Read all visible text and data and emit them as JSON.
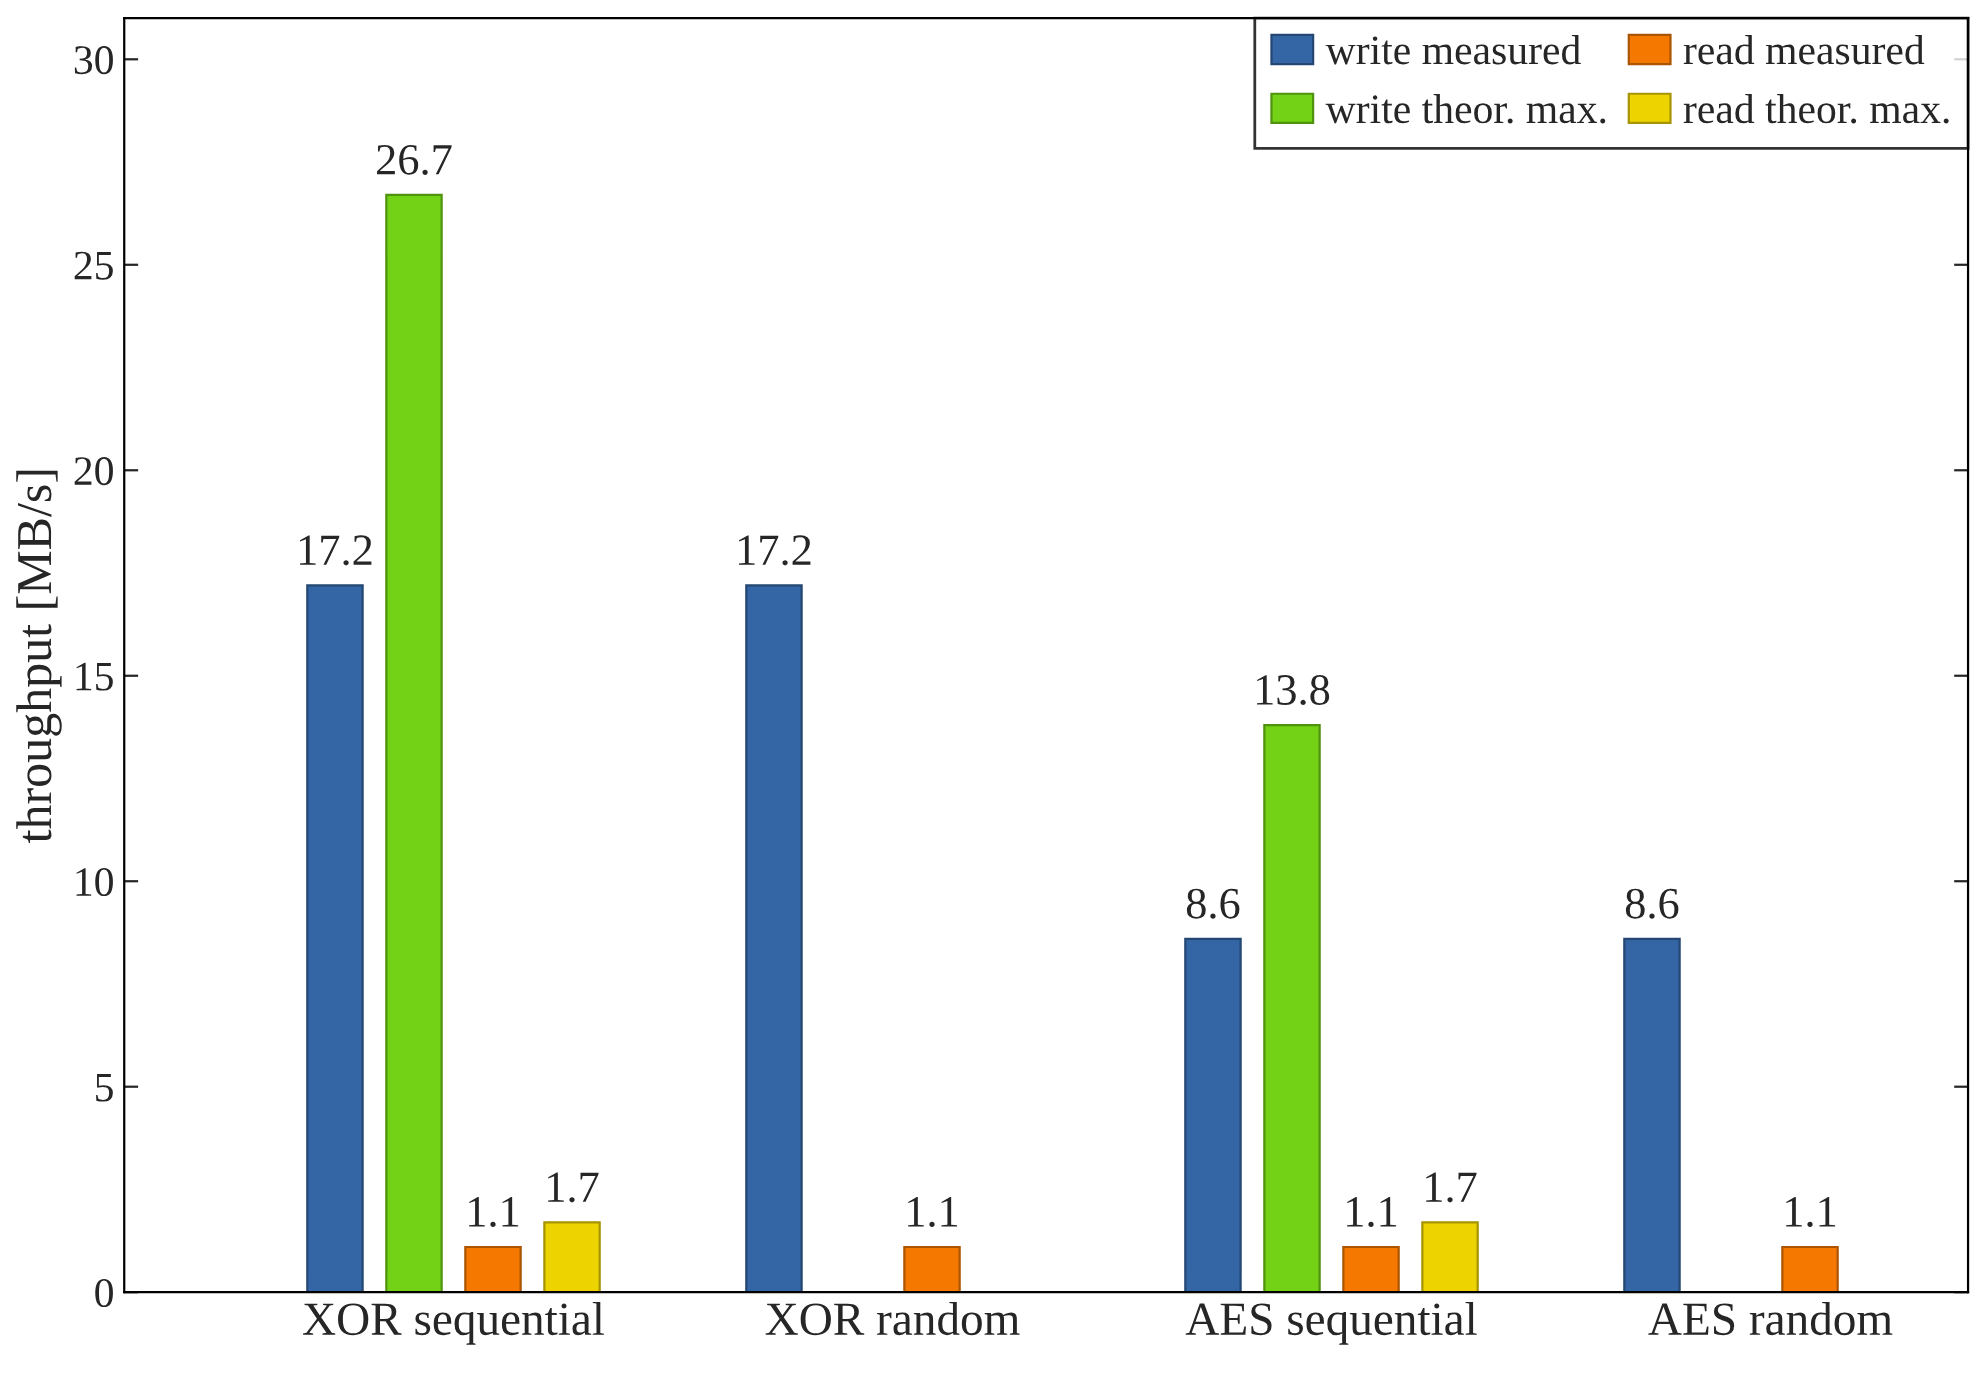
{
  "chart_data": {
    "type": "bar",
    "ylabel": "throughput [MB/s]",
    "categories": [
      "XOR sequential",
      "XOR random",
      "AES sequential",
      "AES random"
    ],
    "series": [
      {
        "name": "write measured",
        "color": "#3465a4",
        "values": [
          17.2,
          17.2,
          8.6,
          8.6
        ]
      },
      {
        "name": "write theor. max.",
        "color": "#73d216",
        "values": [
          26.7,
          null,
          13.8,
          null
        ]
      },
      {
        "name": "read measured",
        "color": "#f57900",
        "values": [
          1.1,
          1.1,
          1.1,
          1.1
        ]
      },
      {
        "name": "read theor. max.",
        "color": "#edd400",
        "values": [
          1.7,
          null,
          1.7,
          null
        ]
      }
    ],
    "ylim": [
      0,
      31
    ],
    "yticks": [
      0,
      5,
      10,
      15,
      20,
      25,
      30
    ],
    "data_labels": true,
    "legend": "top right",
    "grid": false
  }
}
